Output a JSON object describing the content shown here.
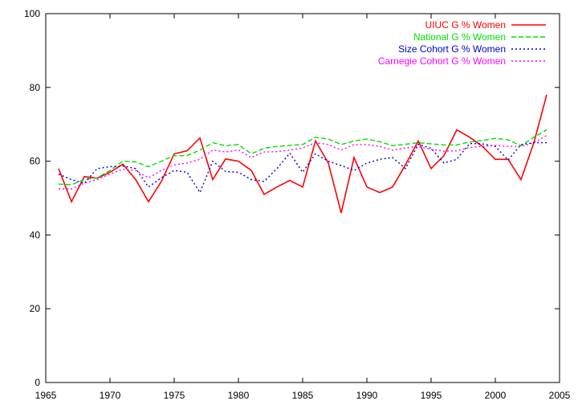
{
  "chart_data": {
    "type": "line",
    "title": "",
    "xlabel": "",
    "ylabel": "",
    "xlim": [
      1965,
      2005
    ],
    "ylim": [
      0,
      100
    ],
    "x_ticks": [
      "1965",
      "1970",
      "1975",
      "1980",
      "1985",
      "1990",
      "1995",
      "2000",
      "2005"
    ],
    "y_ticks": [
      "0",
      "20",
      "40",
      "60",
      "80",
      "100"
    ],
    "grid": false,
    "legend_position": "top-right",
    "x": [
      1966,
      1967,
      1968,
      1969,
      1970,
      1971,
      1972,
      1973,
      1974,
      1975,
      1976,
      1977,
      1978,
      1979,
      1980,
      1981,
      1982,
      1983,
      1984,
      1985,
      1986,
      1987,
      1988,
      1989,
      1990,
      1991,
      1992,
      1993,
      1994,
      1995,
      1996,
      1997,
      1998,
      1999,
      2000,
      2001,
      2002,
      2003,
      2004
    ],
    "series": [
      {
        "name": "UIUC G % Women",
        "color": "#ff0000",
        "style": "solid",
        "values": [
          58.0,
          49.0,
          55.8,
          55.4,
          57.0,
          59.2,
          55.0,
          49.0,
          54.5,
          62.0,
          62.8,
          66.3,
          55.0,
          60.6,
          60.0,
          57.5,
          51.0,
          53.0,
          54.8,
          53.0,
          65.5,
          59.5,
          46.0,
          61.0,
          53.0,
          51.5,
          53.0,
          59.0,
          65.5,
          58.0,
          61.5,
          68.5,
          66.5,
          64.0,
          60.5,
          60.5,
          55.0,
          65.0,
          78.0
        ]
      },
      {
        "name": "National G % Women",
        "color": "#00e000",
        "style": "dashed",
        "values": [
          53.8,
          53.6,
          55.0,
          55.5,
          57.5,
          60.0,
          59.8,
          58.5,
          60.0,
          61.5,
          61.5,
          63.0,
          65.0,
          64.2,
          64.5,
          62.0,
          63.5,
          64.0,
          64.3,
          64.5,
          66.5,
          66.0,
          64.5,
          65.5,
          66.0,
          65.3,
          64.2,
          64.6,
          65.0,
          64.7,
          64.4,
          64.4,
          65.2,
          65.6,
          66.2,
          65.8,
          64.2,
          66.5,
          68.5
        ]
      },
      {
        "name": "Size Cohort G % Women",
        "color": "#0000cc",
        "style": "dotted",
        "values": [
          56.5,
          55.0,
          54.0,
          58.0,
          58.5,
          58.7,
          58.0,
          53.0,
          55.5,
          57.5,
          57.0,
          51.5,
          60.0,
          57.2,
          57.0,
          55.0,
          54.5,
          58.0,
          62.2,
          57.0,
          62.0,
          60.0,
          58.8,
          57.5,
          59.5,
          60.5,
          61.0,
          58.0,
          64.6,
          63.5,
          59.5,
          60.5,
          64.8,
          64.7,
          64.0,
          60.3,
          64.5,
          65.0,
          65.0
        ]
      },
      {
        "name": "Carnegie Cohort G % Women",
        "color": "#ff00ff",
        "style": "dotted",
        "values": [
          52.5,
          52.5,
          54.0,
          55.0,
          56.5,
          57.8,
          57.5,
          55.5,
          57.5,
          59.0,
          59.5,
          60.5,
          63.0,
          62.5,
          63.0,
          61.0,
          62.5,
          62.6,
          63.0,
          63.6,
          65.0,
          64.5,
          63.0,
          64.5,
          64.5,
          64.0,
          63.0,
          63.6,
          64.0,
          63.2,
          62.7,
          62.8,
          63.7,
          64.0,
          64.3,
          64.0,
          64.0,
          65.0,
          67.0
        ]
      }
    ]
  }
}
